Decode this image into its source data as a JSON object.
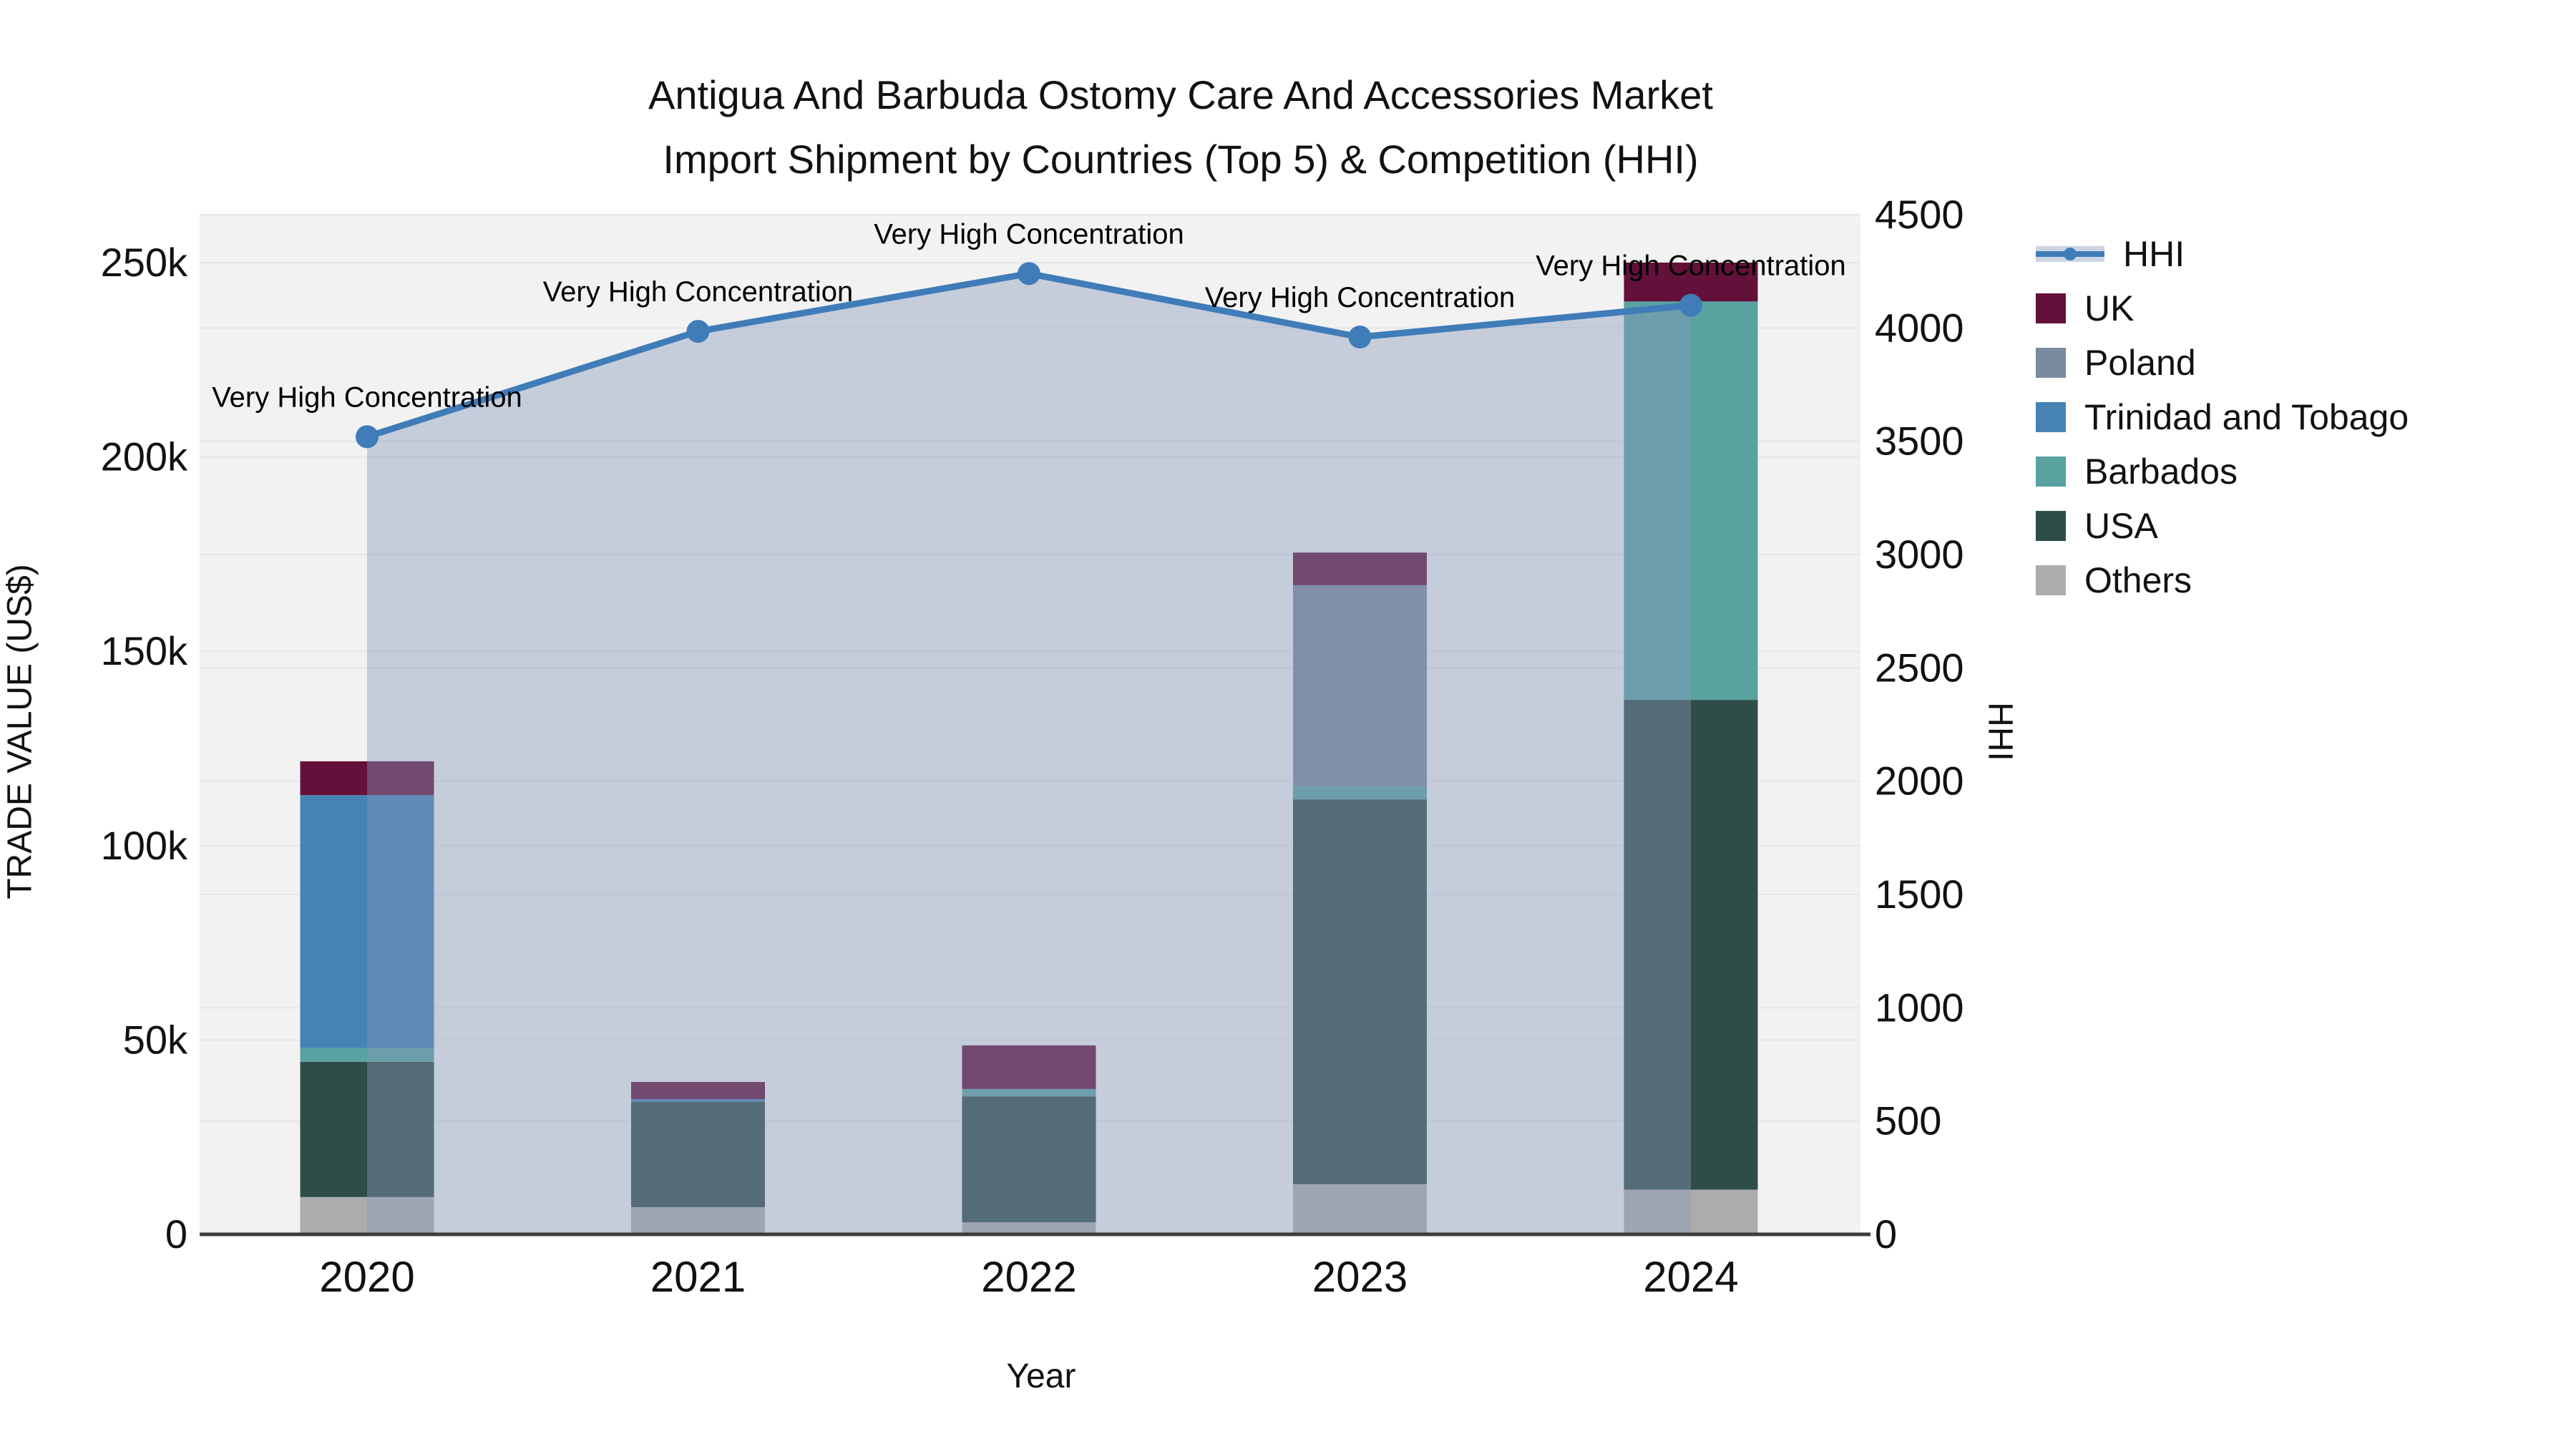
{
  "title": {
    "line1": "Antigua And Barbuda Ostomy Care And Accessories Market",
    "line2": "Import Shipment by Countries (Top 5) & Competition (HHI)"
  },
  "axes": {
    "x": {
      "title": "Year",
      "tick_labels": [
        "2020",
        "2021",
        "2022",
        "2023",
        "2024"
      ]
    },
    "left": {
      "title": "TRADE VALUE (US$)",
      "tick_labels": [
        "0",
        "50k",
        "100k",
        "150k",
        "200k",
        "250k"
      ],
      "tick_values": [
        0,
        50000,
        100000,
        150000,
        200000,
        250000
      ]
    },
    "right": {
      "title": "HHI",
      "tick_labels": [
        "0",
        "500",
        "1000",
        "1500",
        "2000",
        "2500",
        "3000",
        "3500",
        "4000",
        "4500"
      ],
      "tick_values": [
        0,
        500,
        1000,
        1500,
        2000,
        2500,
        3000,
        3500,
        4000,
        4500
      ]
    }
  },
  "chart_data": {
    "type": "bar",
    "subtype": "stacked-bars-with-line-overlay",
    "categories": [
      "2020",
      "2021",
      "2022",
      "2023",
      "2024"
    ],
    "xlabel": "Year",
    "ylabel_left": "TRADE VALUE (US$)",
    "ylabel_right": "HHI",
    "ylim_left": [
      0,
      262000
    ],
    "ylim_right": [
      0,
      4500
    ],
    "grid": true,
    "series": [
      {
        "name": "Others",
        "color": "#acacac",
        "values": [
          9600,
          7000,
          3100,
          12900,
          11500
        ]
      },
      {
        "name": "USA",
        "color": "#2e4d49",
        "values": [
          34800,
          27100,
          32400,
          99000,
          126000
        ]
      },
      {
        "name": "Barbados",
        "color": "#58a2a0",
        "values": [
          3500,
          0,
          1900,
          3300,
          102500
        ]
      },
      {
        "name": "Trinidad and Tobago",
        "color": "#4682b4",
        "values": [
          65100,
          700,
          0,
          0,
          0
        ]
      },
      {
        "name": "Poland",
        "color": "#7a8ba0",
        "values": [
          0,
          0,
          0,
          51800,
          0
        ]
      },
      {
        "name": "UK",
        "color": "#63113a",
        "values": [
          8700,
          4400,
          11200,
          8400,
          10000
        ]
      }
    ],
    "bar_totals": [
      121700,
      39200,
      48600,
      175400,
      250000
    ],
    "line": {
      "name": "HHI",
      "color": "#3f7cb8",
      "area_color": "#8899bb",
      "area_alpha": 0.42,
      "values": [
        3520,
        3985,
        4240,
        3960,
        4100
      ]
    },
    "annotations": [
      {
        "text": "Very High Concentration",
        "category": "2020"
      },
      {
        "text": "Very High Concentration",
        "category": "2021"
      },
      {
        "text": "Very High Concentration",
        "category": "2022"
      },
      {
        "text": "Very High Concentration",
        "category": "2023"
      },
      {
        "text": "Very High Concentration",
        "category": "2024"
      }
    ],
    "colors": {
      "plot_background": "#f2f2f2",
      "page_background": "#ffffff",
      "gridline": "#e4e6e8",
      "axis_line": "#3c3c3c",
      "tick_text": "#111111"
    },
    "legend_position": "upper-right-outside"
  },
  "legend": {
    "items": [
      {
        "label": "HHI",
        "type": "line",
        "color": "#3f7cb8"
      },
      {
        "label": "UK",
        "type": "swatch",
        "color": "#63113a"
      },
      {
        "label": "Poland",
        "type": "swatch",
        "color": "#7a8ba0"
      },
      {
        "label": "Trinidad and Tobago",
        "type": "swatch",
        "color": "#4682b4"
      },
      {
        "label": "Barbados",
        "type": "swatch",
        "color": "#58a2a0"
      },
      {
        "label": "USA",
        "type": "swatch",
        "color": "#2e4d49"
      },
      {
        "label": "Others",
        "type": "swatch",
        "color": "#acacac"
      }
    ]
  }
}
